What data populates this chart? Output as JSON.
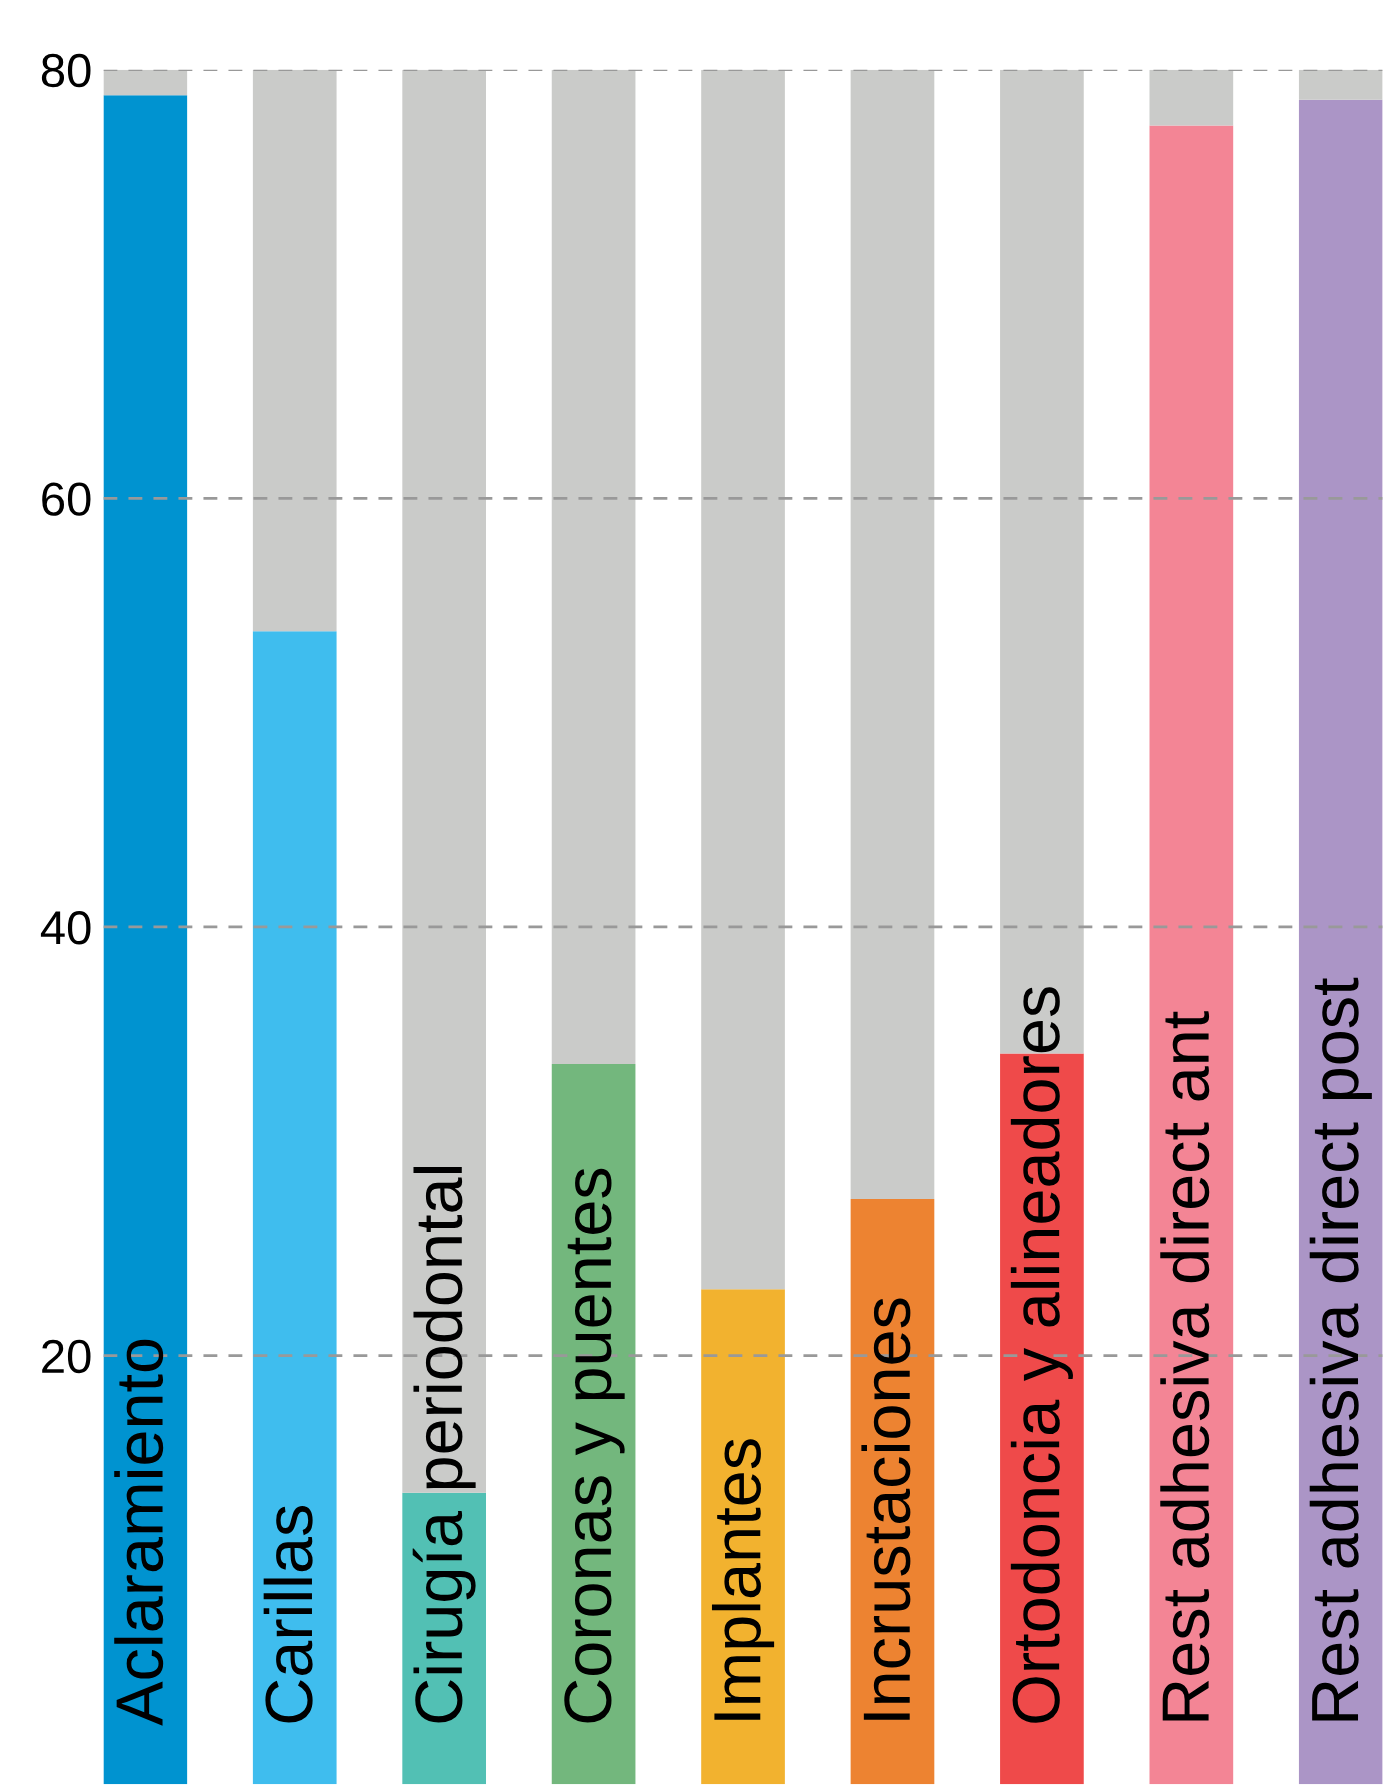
{
  "chart_data": {
    "type": "bar",
    "stacked": true,
    "categories": [
      "Aclaramiento",
      "Carillas",
      "Cirugía periodontal",
      "Coronas y puentes",
      "Implantes",
      "Incrustaciones",
      "Ortodoncia y alineadores",
      "Rest adhesiva direct ant",
      "Rest adhesiva direct post"
    ],
    "series": [
      {
        "colors": [
          "#0093d0",
          "#3fbdee",
          "#52c0b4",
          "#73b77d",
          "#f2b22f",
          "#ed8331",
          "#ef4a4a",
          "#f38595",
          "#ab95c6"
        ],
        "values": [
          78.8,
          53.8,
          13.6,
          33.6,
          23.1,
          27.3,
          34.1,
          77.4,
          78.6
        ]
      },
      {
        "color": "#cacbc9",
        "values": [
          1.2,
          26.2,
          66.4,
          46.4,
          56.9,
          52.7,
          45.9,
          2.6,
          1.4
        ]
      }
    ],
    "ylim": [
      0,
      80
    ],
    "yticks": [
      20,
      40,
      60,
      80
    ],
    "grid": "y",
    "line_style": "dashed"
  }
}
